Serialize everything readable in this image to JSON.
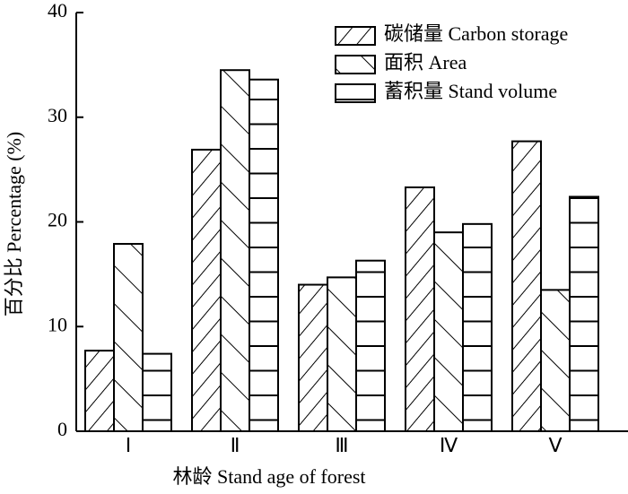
{
  "chart_data": {
    "type": "bar",
    "xlabel": "林龄 Stand age of forest",
    "ylabel": "百分比 Percentage (%)",
    "categories": [
      "Ⅰ",
      "Ⅱ",
      "Ⅲ",
      "Ⅳ",
      "Ⅴ"
    ],
    "series": [
      {
        "name": "碳储量 Carbon storage",
        "color": "#000000",
        "values": [
          7.7,
          26.9,
          14.0,
          23.3,
          27.7
        ]
      },
      {
        "name": "面积 Area",
        "color": "#000000",
        "values": [
          17.9,
          34.5,
          14.7,
          19.0,
          13.5
        ]
      },
      {
        "name": "蓄积量 Stand volume",
        "color": "#000000",
        "values": [
          7.4,
          33.6,
          16.3,
          19.8,
          22.4
        ]
      }
    ],
    "ylim": [
      0,
      40
    ],
    "yticks": [
      0,
      10,
      20,
      30,
      40
    ],
    "legend": "upper right"
  }
}
